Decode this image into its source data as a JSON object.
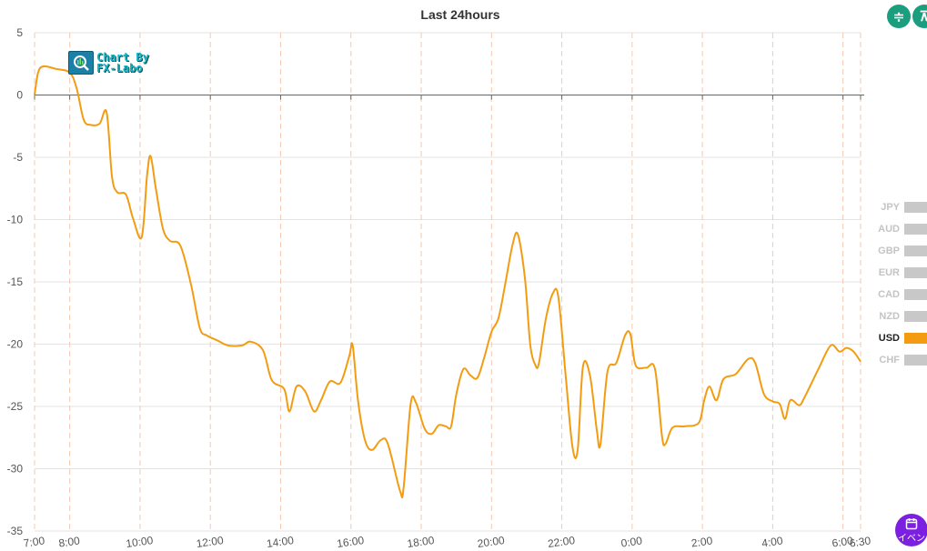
{
  "chart_data": {
    "type": "line",
    "title": "Last 24hours",
    "ylim": [
      -35,
      5
    ],
    "yticks": [
      5,
      0,
      -5,
      -10,
      -15,
      -20,
      -25,
      -30,
      -35
    ],
    "xlim": [
      0,
      23.5
    ],
    "xticks": [
      {
        "label": "7:00",
        "x": 0
      },
      {
        "label": "8:00",
        "x": 1
      },
      {
        "label": "10:00",
        "x": 3
      },
      {
        "label": "12:00",
        "x": 5
      },
      {
        "label": "14:00",
        "x": 7
      },
      {
        "label": "16:00",
        "x": 9
      },
      {
        "label": "18:00",
        "x": 11
      },
      {
        "label": "20:00",
        "x": 13
      },
      {
        "label": "22:00",
        "x": 15
      },
      {
        "label": "0:00",
        "x": 17
      },
      {
        "label": "2:00",
        "x": 19
      },
      {
        "label": "4:00",
        "x": 21
      },
      {
        "label": "6:00",
        "x": 23
      },
      {
        "label": "6:30",
        "x": 23.5
      }
    ],
    "grid": true,
    "legend_position": "right",
    "series": [
      {
        "name": "USD",
        "color": "#f39c12",
        "points": [
          [
            0.0,
            0.0
          ],
          [
            0.1,
            1.8
          ],
          [
            0.25,
            2.3
          ],
          [
            0.6,
            2.1
          ],
          [
            1.0,
            1.8
          ],
          [
            1.2,
            0.5
          ],
          [
            1.4,
            -2.0
          ],
          [
            1.6,
            -2.4
          ],
          [
            1.85,
            -2.3
          ],
          [
            2.05,
            -1.4
          ],
          [
            2.2,
            -6.5
          ],
          [
            2.35,
            -7.8
          ],
          [
            2.6,
            -8.0
          ],
          [
            2.8,
            -9.9
          ],
          [
            3.05,
            -11.4
          ],
          [
            3.2,
            -6.5
          ],
          [
            3.3,
            -4.9
          ],
          [
            3.45,
            -7.5
          ],
          [
            3.65,
            -10.7
          ],
          [
            3.85,
            -11.7
          ],
          [
            4.15,
            -12.1
          ],
          [
            4.45,
            -15.2
          ],
          [
            4.7,
            -18.7
          ],
          [
            4.9,
            -19.3
          ],
          [
            5.2,
            -19.7
          ],
          [
            5.5,
            -20.1
          ],
          [
            5.9,
            -20.1
          ],
          [
            6.15,
            -19.8
          ],
          [
            6.5,
            -20.5
          ],
          [
            6.75,
            -22.9
          ],
          [
            7.1,
            -23.6
          ],
          [
            7.25,
            -25.4
          ],
          [
            7.45,
            -23.4
          ],
          [
            7.7,
            -23.8
          ],
          [
            7.95,
            -25.4
          ],
          [
            8.15,
            -24.5
          ],
          [
            8.4,
            -23.0
          ],
          [
            8.7,
            -23.1
          ],
          [
            8.95,
            -21.0
          ],
          [
            9.05,
            -20.1
          ],
          [
            9.2,
            -24.5
          ],
          [
            9.4,
            -27.7
          ],
          [
            9.6,
            -28.5
          ],
          [
            9.85,
            -27.7
          ],
          [
            10.05,
            -28.0
          ],
          [
            10.4,
            -31.8
          ],
          [
            10.5,
            -31.5
          ],
          [
            10.7,
            -24.8
          ],
          [
            10.85,
            -24.7
          ],
          [
            11.1,
            -26.8
          ],
          [
            11.3,
            -27.2
          ],
          [
            11.5,
            -26.5
          ],
          [
            11.7,
            -26.6
          ],
          [
            11.85,
            -26.6
          ],
          [
            12.0,
            -24.0
          ],
          [
            12.2,
            -22.0
          ],
          [
            12.4,
            -22.5
          ],
          [
            12.6,
            -22.7
          ],
          [
            12.8,
            -21.0
          ],
          [
            13.0,
            -19.0
          ],
          [
            13.2,
            -17.9
          ],
          [
            13.4,
            -15.0
          ],
          [
            13.6,
            -12.0
          ],
          [
            13.75,
            -11.2
          ],
          [
            13.95,
            -14.7
          ],
          [
            14.1,
            -20.0
          ],
          [
            14.25,
            -21.7
          ],
          [
            14.35,
            -21.5
          ],
          [
            14.55,
            -17.9
          ],
          [
            14.75,
            -15.9
          ],
          [
            14.9,
            -16.2
          ],
          [
            15.1,
            -22.2
          ],
          [
            15.3,
            -28.2
          ],
          [
            15.45,
            -28.5
          ],
          [
            15.6,
            -21.8
          ],
          [
            15.8,
            -22.5
          ],
          [
            16.0,
            -27.0
          ],
          [
            16.1,
            -28.0
          ],
          [
            16.3,
            -22.2
          ],
          [
            16.55,
            -21.5
          ],
          [
            16.8,
            -19.3
          ],
          [
            16.95,
            -19.2
          ],
          [
            17.1,
            -21.7
          ],
          [
            17.4,
            -21.9
          ],
          [
            17.65,
            -22.0
          ],
          [
            17.85,
            -27.4
          ],
          [
            17.95,
            -28.0
          ],
          [
            18.15,
            -26.7
          ],
          [
            18.5,
            -26.6
          ],
          [
            18.9,
            -26.3
          ],
          [
            19.05,
            -24.5
          ],
          [
            19.2,
            -23.4
          ],
          [
            19.4,
            -24.5
          ],
          [
            19.6,
            -22.8
          ],
          [
            19.95,
            -22.4
          ],
          [
            20.3,
            -21.2
          ],
          [
            20.5,
            -21.5
          ],
          [
            20.75,
            -24.0
          ],
          [
            21.0,
            -24.6
          ],
          [
            21.2,
            -24.8
          ],
          [
            21.35,
            -26.0
          ],
          [
            21.5,
            -24.5
          ],
          [
            21.75,
            -24.9
          ],
          [
            21.9,
            -24.3
          ],
          [
            22.3,
            -22.0
          ],
          [
            22.65,
            -20.1
          ],
          [
            22.9,
            -20.6
          ],
          [
            23.1,
            -20.3
          ],
          [
            23.3,
            -20.6
          ],
          [
            23.5,
            -21.4
          ]
        ]
      }
    ]
  },
  "legend": [
    {
      "label": "JPY",
      "active": false
    },
    {
      "label": "AUD",
      "active": false
    },
    {
      "label": "GBP",
      "active": false
    },
    {
      "label": "EUR",
      "active": false
    },
    {
      "label": "CAD",
      "active": false
    },
    {
      "label": "NZD",
      "active": false
    },
    {
      "label": "USD",
      "active": true,
      "color": "#f39c12"
    },
    {
      "label": "CHF",
      "active": false
    }
  ],
  "logo": {
    "line1": "Chart By",
    "line2": "FX-Labo"
  },
  "toolbar": {
    "compress_icon": "≑",
    "expand_icon": "⊼"
  },
  "event_button": {
    "icon": "calendar-icon",
    "label": "イベン"
  }
}
